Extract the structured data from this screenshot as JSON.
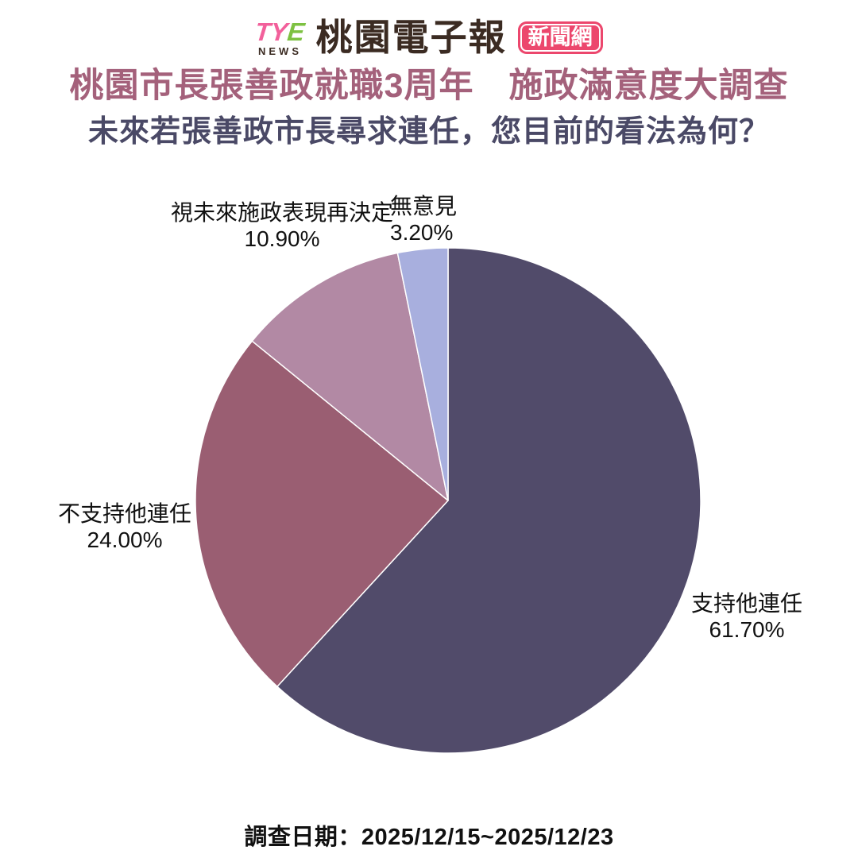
{
  "logo": {
    "tye_pink": "TY",
    "tye_green": "E",
    "news": "NEWS",
    "brand": "桃園電子報",
    "badge": "新聞網",
    "colors": {
      "tye_pink": "#F2609B",
      "tye_green": "#7DC142",
      "brand_brown": "#3B2B22",
      "badge_bg": "#EC476D"
    }
  },
  "header": {
    "title": "桃園市長張善政就職3周年　施政滿意度大調查",
    "title_color": "#A4617B",
    "question": "未來若張善政市長尋求連任，您目前的看法為何？",
    "question_color": "#4A4966"
  },
  "chart_data": {
    "type": "pie",
    "title": "未來若張善政市長尋求連任，您目前的看法為何？",
    "start_angle_deg": 0,
    "direction": "clockwise",
    "legend_position": "outside-labels",
    "slices": [
      {
        "id": "support-reelection",
        "label": "支持他連任",
        "value": 61.7,
        "percent_label": "61.70%",
        "color": "#514B6A"
      },
      {
        "id": "oppose-reelection",
        "label": "不支持他連任",
        "value": 24.0,
        "percent_label": "24.00%",
        "color": "#9A5E72"
      },
      {
        "id": "depends-on-performance",
        "label": "視未來施政表現再決定",
        "value": 10.9,
        "percent_label": "10.90%",
        "color": "#B289A4"
      },
      {
        "id": "no-opinion",
        "label": "無意見",
        "value": 3.2,
        "percent_label": "3.20%",
        "color": "#A8AFDE"
      }
    ]
  },
  "footer": {
    "date": "調查日期：2025/12/15~2025/12/23"
  }
}
